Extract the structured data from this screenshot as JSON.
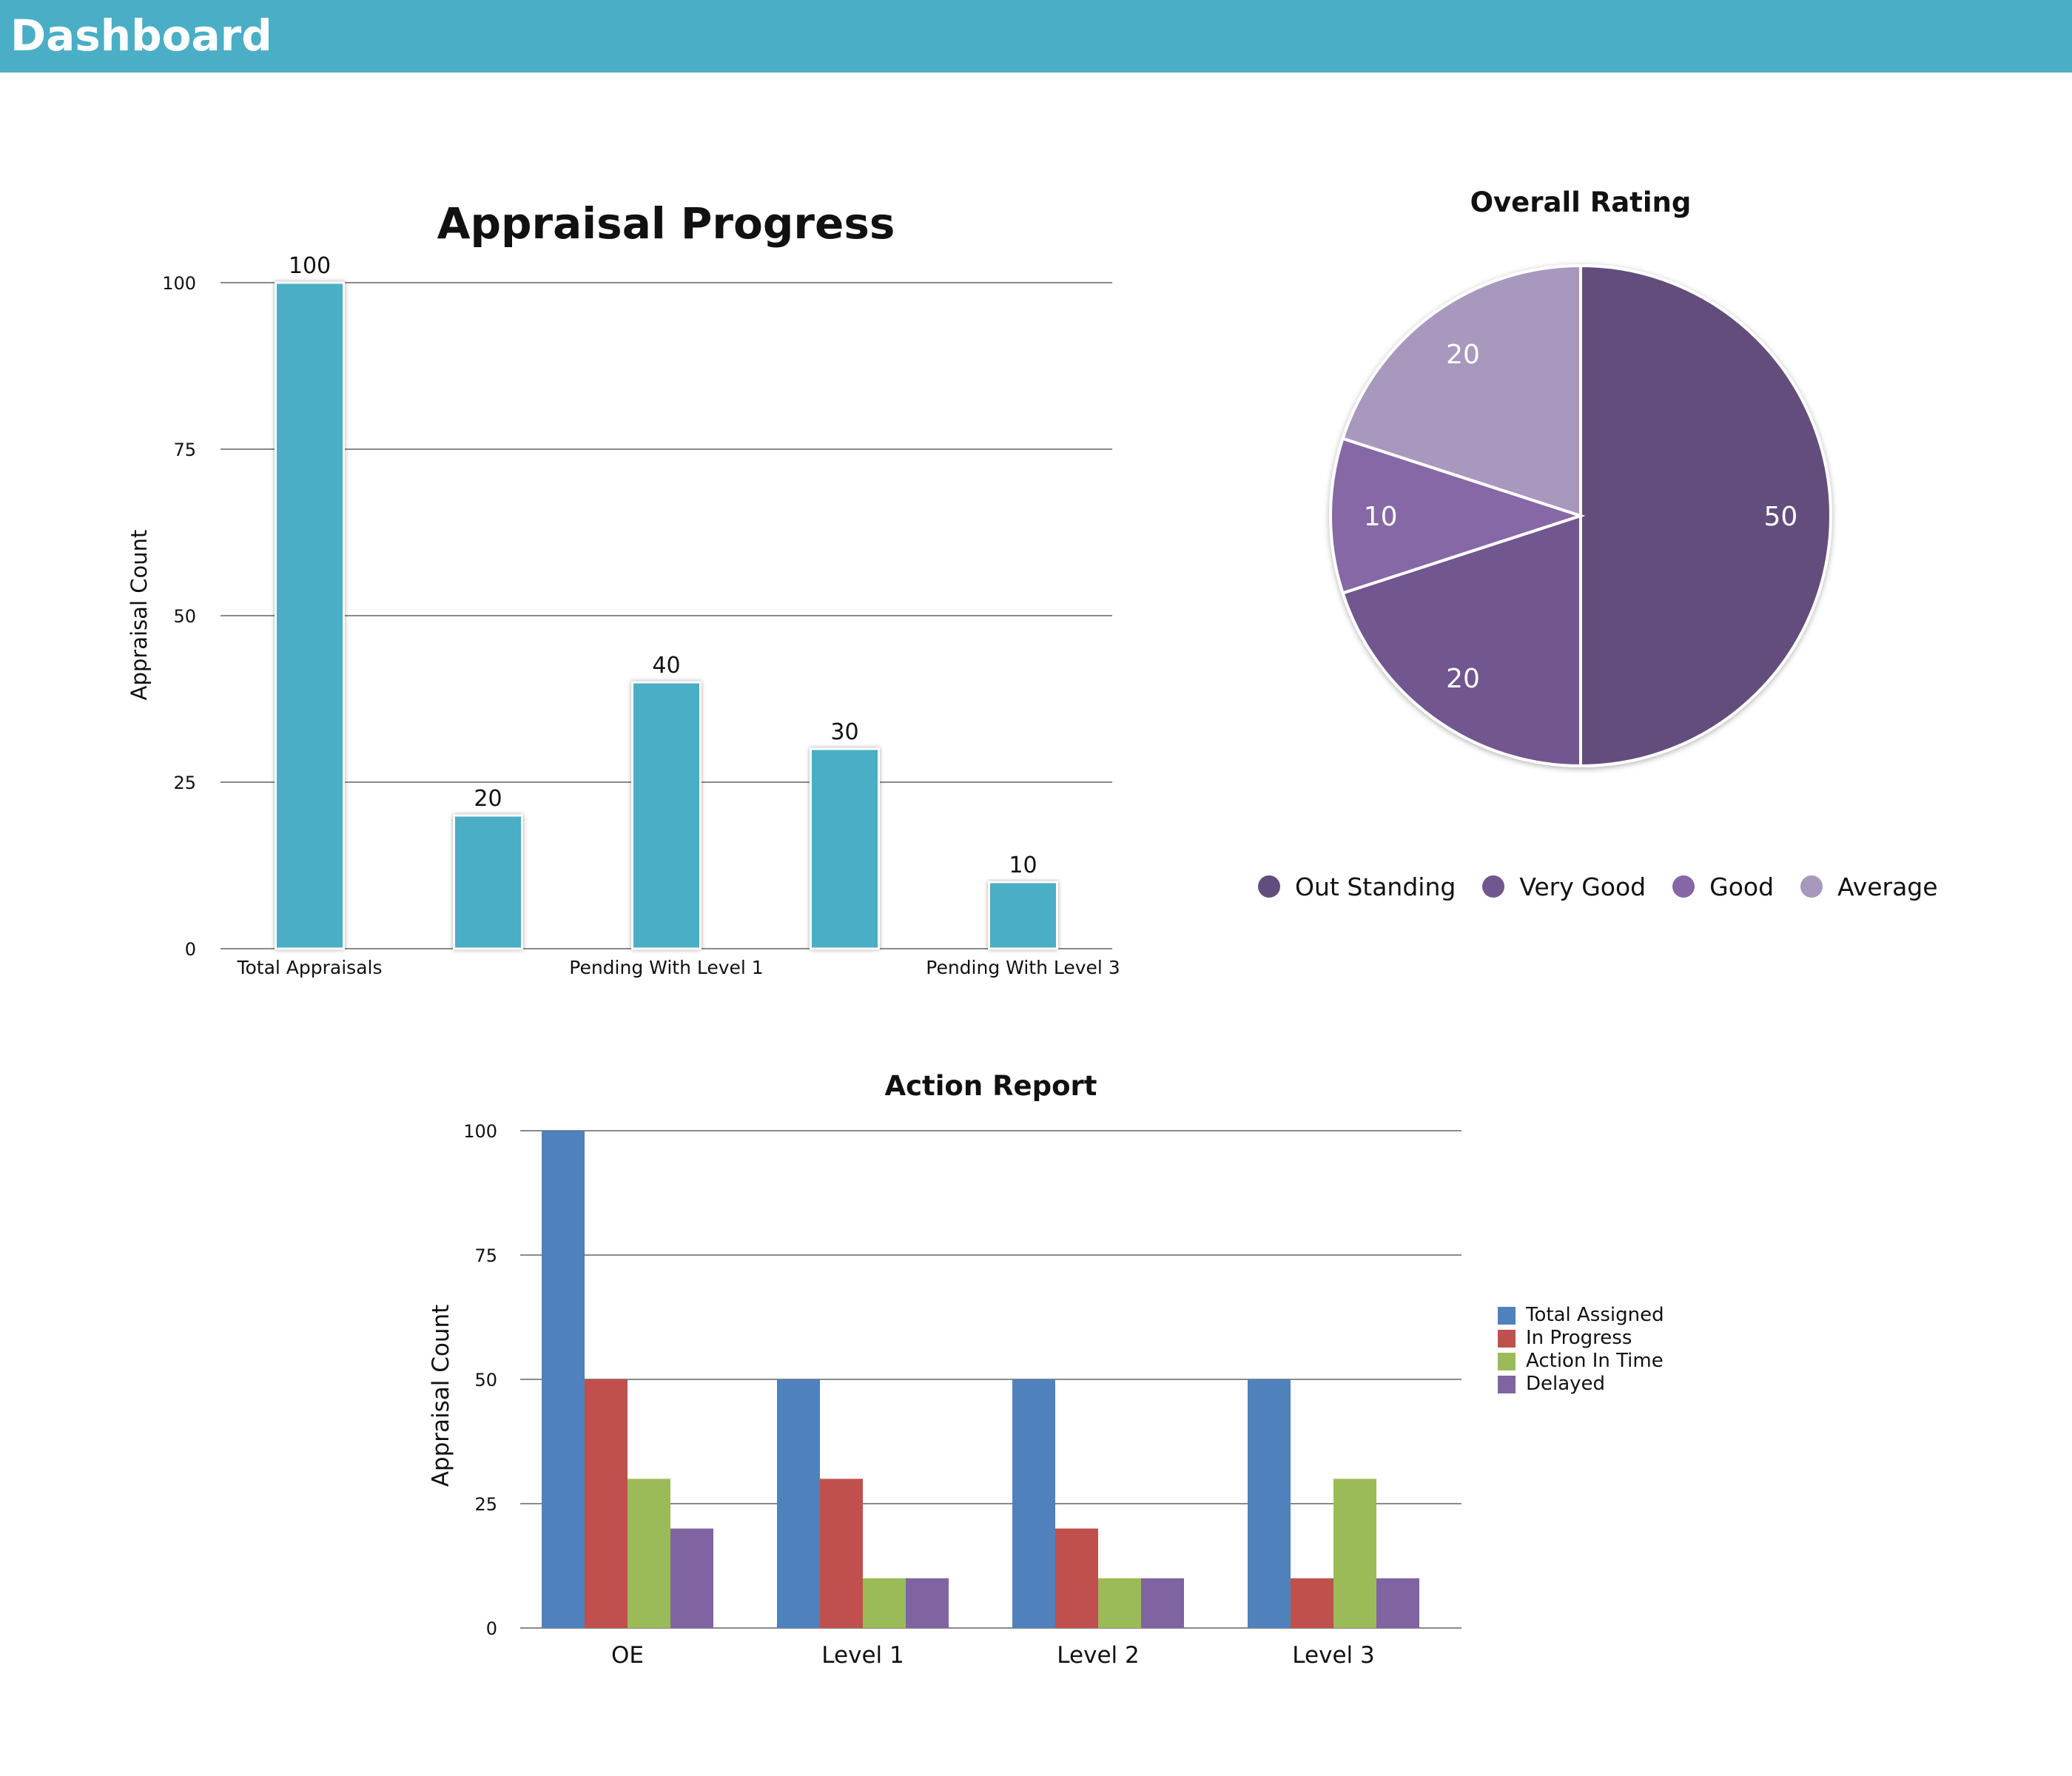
{
  "header": {
    "title": "Dashboard",
    "bg_color": "#4aaec6"
  },
  "chart_data": [
    {
      "type": "bar",
      "title": "Appraisal Progress",
      "ylabel": "Appraisal Count",
      "xlabel": "",
      "ylim": [
        0,
        100
      ],
      "yticks": [
        "0",
        "25",
        "50",
        "75",
        "100"
      ],
      "categories": [
        "Total Appraisals",
        "",
        "Pending With Level 1",
        "",
        "Pending With Level 3"
      ],
      "values": [
        100,
        20,
        40,
        30,
        10
      ],
      "value_labels": [
        "100",
        "20",
        "40",
        "30",
        "10"
      ],
      "color": "#4aaec6",
      "grid": true,
      "legend": "none"
    },
    {
      "type": "pie",
      "title": "Overall Rating",
      "labels": [
        "Out Standing",
        "Very Good",
        "Good",
        "Average"
      ],
      "values": [
        50,
        20,
        10,
        20
      ],
      "value_labels": [
        "50",
        "20",
        "10",
        "20"
      ],
      "colors": [
        "#624e7c",
        "#71578f",
        "#8667a6",
        "#a898bd"
      ],
      "legend": "bottom"
    },
    {
      "type": "bar",
      "title": "Action Report",
      "ylabel": "Appraisal Count",
      "xlabel": "",
      "ylim": [
        0,
        100
      ],
      "yticks": [
        "0",
        "25",
        "50",
        "75",
        "100"
      ],
      "categories": [
        "OE",
        "Level 1",
        "Level 2",
        "Level 3"
      ],
      "series": [
        {
          "name": "Total Assigned",
          "values": [
            100,
            50,
            50,
            50
          ],
          "color": "#4f81bd"
        },
        {
          "name": "In Progress",
          "values": [
            50,
            30,
            20,
            10
          ],
          "color": "#c0504d"
        },
        {
          "name": "Action In Time",
          "values": [
            30,
            10,
            10,
            30
          ],
          "color": "#9bbb59"
        },
        {
          "name": "Delayed",
          "values": [
            20,
            10,
            10,
            10
          ],
          "color": "#8064a2"
        }
      ],
      "grid": true,
      "legend": "right"
    }
  ]
}
